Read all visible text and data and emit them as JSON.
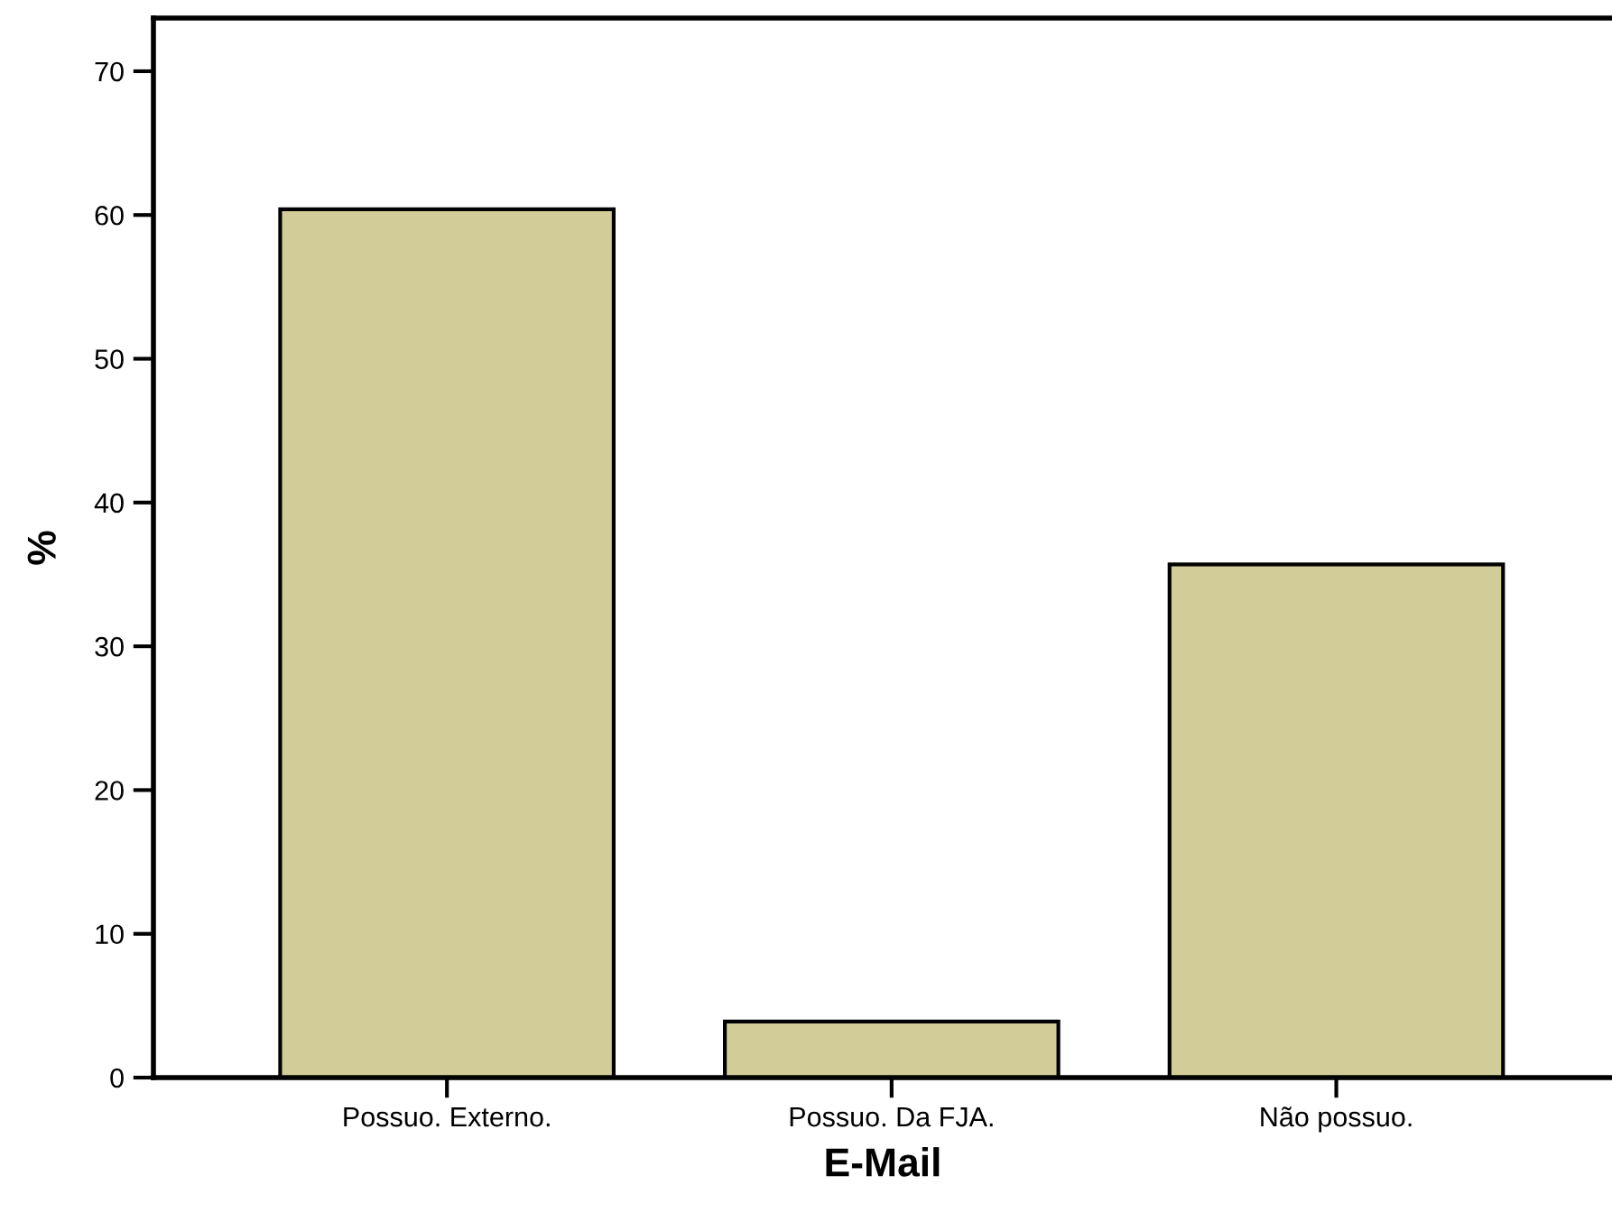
{
  "chart_data": {
    "type": "bar",
    "xlabel": "E-Mail",
    "ylabel": "%",
    "categories": [
      "Possuo. Externo.",
      "Possuo. Da FJA.",
      "Não possuo."
    ],
    "values": [
      60.4,
      3.9,
      35.7
    ],
    "color": "#d2cd98",
    "ylim": [
      0,
      73.7
    ],
    "yticks": [
      0,
      10,
      20,
      30,
      40,
      50,
      60,
      70
    ],
    "grid": false,
    "legend": false
  }
}
